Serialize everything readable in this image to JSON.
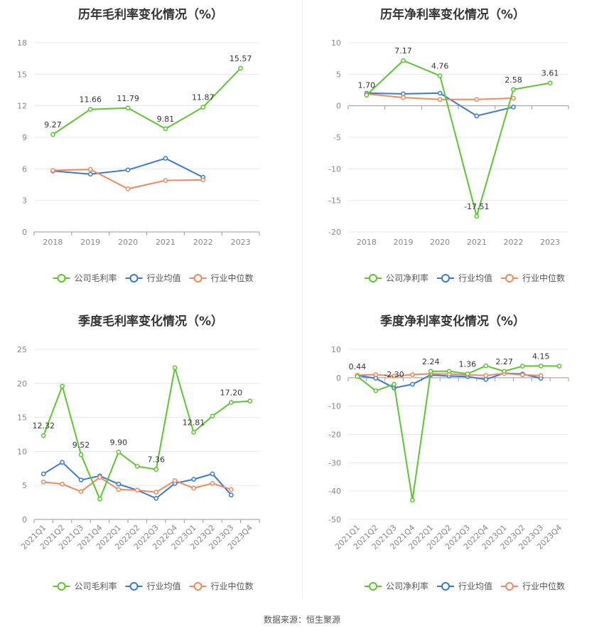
{
  "source": "数据来源：恒生聚源",
  "colors": {
    "company": "#5cc62f",
    "industry_avg": "#3a78d8",
    "industry_median": "#f08a5d"
  },
  "chart_data": [
    {
      "type": "line",
      "title": "历年毛利率变化情况（%）",
      "categories": [
        "2018",
        "2019",
        "2020",
        "2021",
        "2022",
        "2023"
      ],
      "ylim": [
        0,
        18
      ],
      "yticks": [
        0,
        3,
        6,
        9,
        12,
        15,
        18
      ],
      "rotate_x": false,
      "grid": true,
      "legend_position": "bottom",
      "series": [
        {
          "name": "公司毛利率",
          "color_key": "company",
          "values": [
            9.27,
            11.66,
            11.79,
            9.81,
            11.87,
            15.57
          ],
          "labels": [
            "9.27",
            "11.66",
            "11.79",
            "9.81",
            "11.87",
            "15.57"
          ]
        },
        {
          "name": "行业均值",
          "color_key": "industry_avg",
          "values": [
            5.8,
            5.5,
            5.9,
            7.0,
            5.2,
            null
          ]
        },
        {
          "name": "行业中位数",
          "color_key": "industry_median",
          "values": [
            5.85,
            5.95,
            4.1,
            4.9,
            4.95,
            null
          ]
        }
      ]
    },
    {
      "type": "line",
      "title": "历年净利率变化情况（%）",
      "categories": [
        "2018",
        "2019",
        "2020",
        "2021",
        "2022",
        "2023"
      ],
      "ylim": [
        -20,
        10
      ],
      "yticks": [
        -20,
        -15,
        -10,
        -5,
        0,
        5,
        10
      ],
      "rotate_x": false,
      "grid": true,
      "legend_position": "bottom",
      "series": [
        {
          "name": "公司净利率",
          "color_key": "company",
          "values": [
            1.7,
            7.17,
            4.76,
            -17.51,
            2.58,
            3.61
          ],
          "labels": [
            "1.70",
            "7.17",
            "4.76",
            "-17.51",
            "2.58",
            "3.61"
          ]
        },
        {
          "name": "行业均值",
          "color_key": "industry_avg",
          "values": [
            2.0,
            1.9,
            2.0,
            -1.6,
            -0.2,
            null
          ]
        },
        {
          "name": "行业中位数",
          "color_key": "industry_median",
          "values": [
            1.9,
            1.3,
            1.0,
            1.0,
            1.2,
            null
          ]
        }
      ]
    },
    {
      "type": "line",
      "title": "季度毛利率变化情况（%）",
      "categories": [
        "2021Q1",
        "2021Q2",
        "2021Q3",
        "2021Q4",
        "2022Q1",
        "2022Q2",
        "2022Q3",
        "2022Q4",
        "2023Q1",
        "2023Q2",
        "2023Q3",
        "2023Q4"
      ],
      "ylim": [
        0,
        25
      ],
      "yticks": [
        0,
        5,
        10,
        15,
        20,
        25
      ],
      "rotate_x": true,
      "grid": true,
      "legend_position": "bottom",
      "series": [
        {
          "name": "公司毛利率",
          "color_key": "company",
          "values": [
            12.32,
            19.6,
            9.52,
            3.0,
            9.9,
            7.8,
            7.36,
            22.3,
            12.81,
            15.2,
            17.2,
            17.4
          ],
          "labels": [
            "12.32",
            "",
            "9.52",
            "",
            "9.90",
            "",
            "7.36",
            "",
            "12.81",
            "",
            "17.20",
            ""
          ]
        },
        {
          "name": "行业均值",
          "color_key": "industry_avg",
          "values": [
            6.7,
            8.4,
            5.8,
            6.4,
            5.2,
            4.3,
            3.1,
            5.3,
            5.9,
            6.7,
            3.6,
            null
          ]
        },
        {
          "name": "行业中位数",
          "color_key": "industry_median",
          "values": [
            5.5,
            5.2,
            4.1,
            6.2,
            4.4,
            4.3,
            4.0,
            5.7,
            4.6,
            5.3,
            4.4,
            null
          ]
        }
      ]
    },
    {
      "type": "line",
      "title": "季度净利率变化情况（%）",
      "categories": [
        "2021Q1",
        "2021Q2",
        "2021Q3",
        "2021Q4",
        "2022Q1",
        "2022Q2",
        "2022Q3",
        "2022Q4",
        "2023Q1",
        "2023Q2",
        "2023Q3",
        "2023Q4"
      ],
      "ylim": [
        -50,
        10
      ],
      "yticks": [
        -50,
        -40,
        -30,
        -20,
        -10,
        0,
        10
      ],
      "rotate_x": true,
      "grid": true,
      "legend_position": "bottom",
      "series": [
        {
          "name": "公司净利率",
          "color_key": "company",
          "values": [
            0.44,
            -4.6,
            -2.3,
            -43.2,
            2.24,
            2.3,
            1.36,
            4.2,
            2.27,
            4.1,
            4.15,
            4.1
          ],
          "labels": [
            "0.44",
            "",
            "-2.30",
            "",
            "2.24",
            "",
            "1.36",
            "",
            "2.27",
            "",
            "4.15",
            ""
          ]
        },
        {
          "name": "行业均值",
          "color_key": "industry_avg",
          "values": [
            0.8,
            -0.2,
            -3.6,
            -2.3,
            1.0,
            0.6,
            0.4,
            -0.6,
            1.6,
            1.3,
            -0.2,
            null
          ]
        },
        {
          "name": "行业中位数",
          "color_key": "industry_median",
          "values": [
            0.9,
            1.1,
            0.6,
            1.1,
            1.4,
            1.3,
            1.0,
            0.8,
            1.5,
            1.0,
            0.8,
            null
          ]
        }
      ]
    }
  ]
}
